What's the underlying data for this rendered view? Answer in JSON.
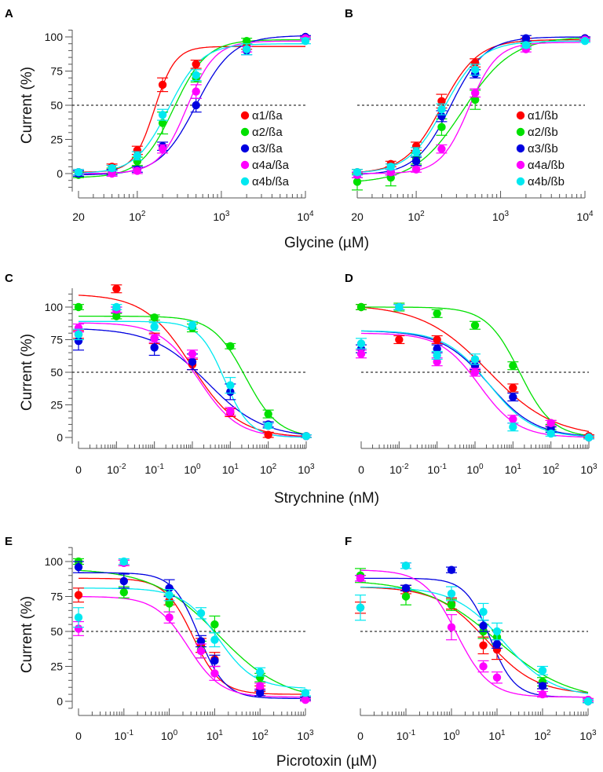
{
  "figure": {
    "y_axis_title": "Current (%)",
    "row_xlabels": [
      "Glycine (µM)",
      "Strychnine (nM)",
      "Picrotoxin (µM)"
    ]
  },
  "series_colors": {
    "α1": "#ff0000",
    "α2": "#00e000",
    "α3": "#0000e0",
    "α4a": "#ff00ff",
    "α4b": "#00e8f0"
  },
  "chart_data": [
    {
      "panel": "A",
      "type": "scatter",
      "fit": "sigmoid-increasing",
      "xscale": "log",
      "xlim": [
        20,
        10000
      ],
      "xticks": [
        20,
        100,
        1000,
        10000
      ],
      "xtick_labels": [
        "20",
        "10²",
        "10³",
        "10⁴"
      ],
      "ylim": [
        -12,
        105
      ],
      "yticks": [
        0,
        25,
        50,
        75,
        100
      ],
      "xlabel": "Glycine (µM)",
      "ylabel": "Current (%)",
      "reference_line": 50,
      "legend": {
        "position": "center-right",
        "entries": [
          "α1/ßa",
          "α2/ßa",
          "α3/ßa",
          "α4a/ßa",
          "α4b/ßa"
        ]
      },
      "x": [
        20,
        50,
        100,
        200,
        500,
        2000,
        10000
      ],
      "series": [
        {
          "name": "α1/ßa",
          "color": "#ff0000",
          "values": [
            1,
            5,
            17,
            65,
            80,
            93,
            99
          ],
          "errors": [
            2,
            2,
            3,
            5,
            3,
            2,
            1
          ],
          "fit": {
            "bottom": 1,
            "top": 93,
            "ec50": 160,
            "hill": 3.5
          }
        },
        {
          "name": "α2/ßa",
          "color": "#00e000",
          "values": [
            -1,
            2,
            9,
            37,
            70,
            97,
            99
          ],
          "errors": [
            2,
            2,
            3,
            8,
            3,
            2,
            1
          ],
          "fit": {
            "bottom": -3,
            "top": 98,
            "ec50": 270,
            "hill": 2.2
          }
        },
        {
          "name": "α3/ßa",
          "color": "#0000e0",
          "values": [
            0,
            1,
            3,
            20,
            50,
            90,
            100
          ],
          "errors": [
            2,
            2,
            2,
            3,
            5,
            3,
            1
          ],
          "fit": {
            "bottom": -1,
            "top": 101,
            "ec50": 500,
            "hill": 2.0
          }
        },
        {
          "name": "α4a/ßa",
          "color": "#ff00ff",
          "values": [
            1,
            0,
            2,
            18,
            60,
            91,
            99
          ],
          "errors": [
            2,
            2,
            2,
            3,
            5,
            2,
            1
          ],
          "fit": {
            "bottom": 0,
            "top": 97,
            "ec50": 390,
            "hill": 2.6
          }
        },
        {
          "name": "α4b/ßa",
          "color": "#00e8f0",
          "values": [
            1,
            4,
            13,
            43,
            72,
            91,
            97
          ],
          "errors": [
            2,
            2,
            3,
            4,
            4,
            4,
            2
          ],
          "fit": {
            "bottom": 0,
            "top": 95,
            "ec50": 235,
            "hill": 2.2
          }
        }
      ]
    },
    {
      "panel": "B",
      "type": "scatter",
      "fit": "sigmoid-increasing",
      "xscale": "log",
      "xlim": [
        20,
        10000
      ],
      "xticks": [
        20,
        100,
        1000,
        10000
      ],
      "xtick_labels": [
        "20",
        "10²",
        "10³",
        "10⁴"
      ],
      "ylim": [
        -12,
        105
      ],
      "yticks": [
        0,
        25,
        50,
        75,
        100
      ],
      "xlabel": "Glycine (µM)",
      "ylabel": "",
      "reference_line": 50,
      "legend": {
        "position": "center-right",
        "entries": [
          "α1/ßb",
          "α2/ßb",
          "α3/ßb",
          "α4a/ßb",
          "α4b/ßb"
        ]
      },
      "x": [
        20,
        50,
        100,
        200,
        500,
        2000,
        10000
      ],
      "series": [
        {
          "name": "α1/ßb",
          "color": "#ff0000",
          "values": [
            1,
            7,
            20,
            53,
            81,
            97,
            99
          ],
          "errors": [
            2,
            2,
            3,
            5,
            3,
            2,
            1
          ],
          "fit": {
            "bottom": 0,
            "top": 98,
            "ec50": 200,
            "hill": 2.0
          }
        },
        {
          "name": "α2/ßb",
          "color": "#00e000",
          "values": [
            -6,
            -3,
            11,
            34,
            54,
            93,
            98
          ],
          "errors": [
            6,
            6,
            4,
            6,
            7,
            2,
            1
          ],
          "fit": {
            "bottom": -7,
            "top": 100,
            "ec50": 360,
            "hill": 1.5
          }
        },
        {
          "name": "α3/ßb",
          "color": "#0000e0",
          "values": [
            -1,
            1,
            9,
            42,
            73,
            99,
            99
          ],
          "errors": [
            2,
            2,
            3,
            4,
            3,
            2,
            1
          ],
          "fit": {
            "bottom": -1,
            "top": 100,
            "ec50": 255,
            "hill": 2.1
          }
        },
        {
          "name": "α4a/ßb",
          "color": "#ff00ff",
          "values": [
            -1,
            1,
            3,
            18,
            59,
            91,
            98
          ],
          "errors": [
            2,
            2,
            2,
            3,
            3,
            2,
            1
          ],
          "fit": {
            "bottom": 0,
            "top": 96,
            "ec50": 420,
            "hill": 2.6
          }
        },
        {
          "name": "α4b/ßb",
          "color": "#00e8f0",
          "values": [
            1,
            5,
            16,
            47,
            76,
            94,
            97
          ],
          "errors": [
            2,
            2,
            3,
            4,
            4,
            2,
            1
          ],
          "fit": {
            "bottom": 0,
            "top": 97,
            "ec50": 215,
            "hill": 2.0
          }
        }
      ]
    },
    {
      "panel": "C",
      "type": "scatter",
      "fit": "sigmoid-decreasing",
      "xscale": "log-with-zero",
      "x_positions": [
        "0",
        "10⁻²",
        "10⁻¹",
        "10⁰",
        "10¹",
        "10²",
        "10³"
      ],
      "xtick_labels": [
        "0",
        "10⁻²",
        "10⁻¹",
        "10⁰",
        "10¹",
        "10²",
        "10³"
      ],
      "ylim": [
        -5,
        115
      ],
      "yticks": [
        0,
        25,
        50,
        75,
        100
      ],
      "xlabel": "Strychnine (nM)",
      "ylabel": "Current (%)",
      "reference_line": 50,
      "x": [
        0,
        0.01,
        0.1,
        1,
        10,
        100,
        1000
      ],
      "series": [
        {
          "name": "α1/ßa",
          "color": "#ff0000",
          "values": [
            79,
            114,
            76,
            56,
            19,
            2,
            1
          ],
          "errors": [
            3,
            3,
            4,
            4,
            3,
            2,
            1
          ],
          "fit": {
            "bottom": 0,
            "top": 110,
            "ic50": 0.95,
            "hill": 0.7
          }
        },
        {
          "name": "α2/ßa",
          "color": "#00e000",
          "values": [
            100,
            93,
            92,
            84,
            70,
            18,
            1
          ],
          "errors": [
            2,
            2,
            2,
            3,
            2,
            3,
            1
          ],
          "fit": {
            "bottom": 0,
            "top": 93,
            "ic50": 25,
            "hill": 1.0
          }
        },
        {
          "name": "α3/ßa",
          "color": "#0000e0",
          "values": [
            74,
            98,
            69,
            58,
            35,
            10,
            1
          ],
          "errors": [
            7,
            2,
            6,
            6,
            6,
            2,
            1
          ],
          "fit": {
            "bottom": 0,
            "top": 84,
            "ic50": 2.5,
            "hill": 0.6
          }
        },
        {
          "name": "α4a/ßa",
          "color": "#ff00ff",
          "values": [
            84,
            98,
            76,
            64,
            20,
            9,
            1
          ],
          "errors": [
            3,
            2,
            3,
            3,
            3,
            2,
            1
          ],
          "fit": {
            "bottom": 0,
            "top": 88,
            "ic50": 1.5,
            "hill": 0.85
          }
        },
        {
          "name": "α4b/ßa",
          "color": "#00e8f0",
          "values": [
            79,
            100,
            85,
            86,
            40,
            9,
            1
          ],
          "errors": [
            4,
            2,
            3,
            3,
            6,
            2,
            1
          ],
          "fit": {
            "bottom": 0,
            "top": 89,
            "ic50": 7,
            "hill": 1.3
          }
        }
      ]
    },
    {
      "panel": "D",
      "type": "scatter",
      "fit": "sigmoid-decreasing",
      "xscale": "log-with-zero",
      "x_positions": [
        "0",
        "10⁻²",
        "10⁻¹",
        "10⁰",
        "10¹",
        "10²",
        "10³"
      ],
      "xtick_labels": [
        "0",
        "10⁻²",
        "10⁻¹",
        "10⁰",
        "10¹",
        "10²",
        "10³"
      ],
      "ylim": [
        -5,
        115
      ],
      "yticks": [
        0,
        25,
        50,
        75,
        100
      ],
      "xlabel": "Strychnine (nM)",
      "ylabel": "",
      "reference_line": 50,
      "x": [
        0,
        0.01,
        0.1,
        1,
        10,
        100,
        1000
      ],
      "series": [
        {
          "name": "α1/ßb",
          "color": "#ff0000",
          "values": [
            100,
            75,
            75,
            55,
            38,
            11,
            1
          ],
          "errors": [
            2,
            3,
            3,
            4,
            3,
            2,
            1
          ],
          "fit": {
            "bottom": 0,
            "top": 102,
            "ic50": 2.2,
            "hill": 0.5
          }
        },
        {
          "name": "α2/ßb",
          "color": "#00e000",
          "values": [
            100,
            100,
            95,
            86,
            55,
            8,
            0
          ],
          "errors": [
            2,
            3,
            3,
            3,
            3,
            2,
            1
          ],
          "fit": {
            "bottom": 0,
            "top": 100,
            "ic50": 15,
            "hill": 1.0
          }
        },
        {
          "name": "α3/ßb",
          "color": "#0000e0",
          "values": [
            68,
            100,
            68,
            55,
            31,
            6,
            0
          ],
          "errors": [
            3,
            2,
            3,
            3,
            3,
            2,
            1
          ],
          "fit": {
            "bottom": 0,
            "top": 82,
            "ic50": 2.3,
            "hill": 0.7
          }
        },
        {
          "name": "α4a/ßb",
          "color": "#ff00ff",
          "values": [
            64,
            100,
            58,
            50,
            14,
            11,
            0
          ],
          "errors": [
            3,
            2,
            3,
            3,
            3,
            2,
            1
          ],
          "fit": {
            "bottom": 0,
            "top": 80,
            "ic50": 1.3,
            "hill": 0.85
          }
        },
        {
          "name": "α4b/ßb",
          "color": "#00e8f0",
          "values": [
            72,
            100,
            63,
            60,
            8,
            3,
            0
          ],
          "errors": [
            4,
            2,
            3,
            4,
            3,
            2,
            1
          ],
          "fit": {
            "bottom": 0,
            "top": 82,
            "ic50": 2.3,
            "hill": 0.75
          }
        }
      ]
    },
    {
      "panel": "E",
      "type": "scatter",
      "fit": "sigmoid-decreasing",
      "xscale": "log-with-zero",
      "x_positions": [
        "0",
        "10⁻¹",
        "10⁰",
        "10¹",
        "10²",
        "10³"
      ],
      "xtick_labels": [
        "0",
        "10⁻¹",
        "10⁰",
        "10¹",
        "10²",
        "10³"
      ],
      "ylim": [
        -5,
        110
      ],
      "yticks": [
        0,
        25,
        50,
        75,
        100
      ],
      "xlabel": "Picrotoxin (µM)",
      "ylabel": "Current (%)",
      "reference_line": 50,
      "x": [
        0,
        0.1,
        1,
        5,
        10,
        100,
        1000
      ],
      "series": [
        {
          "name": "α1/ßa",
          "color": "#ff0000",
          "values": [
            76,
            99,
            72,
            40,
            30,
            9,
            2
          ],
          "errors": [
            5,
            2,
            3,
            5,
            5,
            2,
            1
          ],
          "fit": {
            "bottom": 5,
            "top": 88,
            "ic50": 3.3,
            "hill": 1.4
          }
        },
        {
          "name": "α2/ßa",
          "color": "#00e000",
          "values": [
            100,
            78,
            70,
            37,
            55,
            17,
            2
          ],
          "errors": [
            2,
            4,
            6,
            6,
            6,
            3,
            1
          ],
          "fit": {
            "bottom": 0,
            "top": 95,
            "ic50": 12,
            "hill": 0.6
          }
        },
        {
          "name": "α3/ßa",
          "color": "#0000e0",
          "values": [
            96,
            86,
            81,
            43,
            29,
            6,
            2
          ],
          "errors": [
            4,
            5,
            6,
            4,
            4,
            2,
            1
          ],
          "fit": {
            "bottom": 2,
            "top": 92,
            "ic50": 4.5,
            "hill": 1.5
          }
        },
        {
          "name": "α4a/ßa",
          "color": "#ff00ff",
          "values": [
            52,
            99,
            60,
            36,
            20,
            11,
            1
          ],
          "errors": [
            5,
            2,
            4,
            5,
            5,
            2,
            1
          ],
          "fit": {
            "bottom": 3,
            "top": 75,
            "ic50": 2.6,
            "hill": 1.2
          }
        },
        {
          "name": "α4b/ßa",
          "color": "#00e8f0",
          "values": [
            60,
            100,
            76,
            63,
            44,
            21,
            6
          ],
          "errors": [
            7,
            2,
            4,
            4,
            5,
            3,
            2
          ],
          "fit": {
            "bottom": 9,
            "top": 81,
            "ic50": 12,
            "hill": 1.1
          }
        }
      ]
    },
    {
      "panel": "F",
      "type": "scatter",
      "fit": "sigmoid-decreasing",
      "xscale": "log-with-zero",
      "x_positions": [
        "0",
        "10⁻¹",
        "10⁰",
        "10¹",
        "10²",
        "10³"
      ],
      "xtick_labels": [
        "0",
        "10⁻¹",
        "10⁰",
        "10¹",
        "10²",
        "10³"
      ],
      "ylim": [
        -5,
        110
      ],
      "yticks": [
        0,
        25,
        50,
        75,
        100
      ],
      "xlabel": "Picrotoxin (µM)",
      "ylabel": "",
      "reference_line": 50,
      "x": [
        0,
        0.1,
        1,
        5,
        10,
        100,
        1000
      ],
      "series": [
        {
          "name": "α1/ßb",
          "color": "#ff0000",
          "values": [
            67,
            80,
            70,
            40,
            37,
            11,
            1
          ],
          "errors": [
            4,
            3,
            4,
            6,
            7,
            2,
            1
          ],
          "fit": {
            "bottom": 5,
            "top": 82,
            "ic50": 6,
            "hill": 0.8
          }
        },
        {
          "name": "α2/ßb",
          "color": "#00e000",
          "values": [
            90,
            75,
            69,
            50,
            46,
            14,
            0
          ],
          "errors": [
            5,
            6,
            4,
            5,
            5,
            3,
            1
          ],
          "fit": {
            "bottom": 0,
            "top": 87,
            "ic50": 10,
            "hill": 0.55
          }
        },
        {
          "name": "α3/ßb",
          "color": "#0000e0",
          "values": [
            88,
            81,
            94,
            54,
            41,
            11,
            0
          ],
          "errors": [
            2,
            2,
            2,
            4,
            3,
            2,
            1
          ],
          "fit": {
            "bottom": 3,
            "top": 88,
            "ic50": 7,
            "hill": 1.6
          }
        },
        {
          "name": "α4a/ßb",
          "color": "#ff00ff",
          "values": [
            88,
            97,
            53,
            25,
            17,
            5,
            1
          ],
          "errors": [
            2,
            2,
            9,
            4,
            4,
            2,
            1
          ],
          "fit": {
            "bottom": 3,
            "top": 94,
            "ic50": 1.3,
            "hill": 1.2
          }
        },
        {
          "name": "α4b/ßb",
          "color": "#00e8f0",
          "values": [
            67,
            97,
            77,
            64,
            50,
            22,
            0
          ],
          "errors": [
            9,
            2,
            5,
            6,
            6,
            3,
            1
          ],
          "fit": {
            "bottom": 3,
            "top": 82,
            "ic50": 14,
            "hill": 0.8
          }
        }
      ]
    }
  ]
}
